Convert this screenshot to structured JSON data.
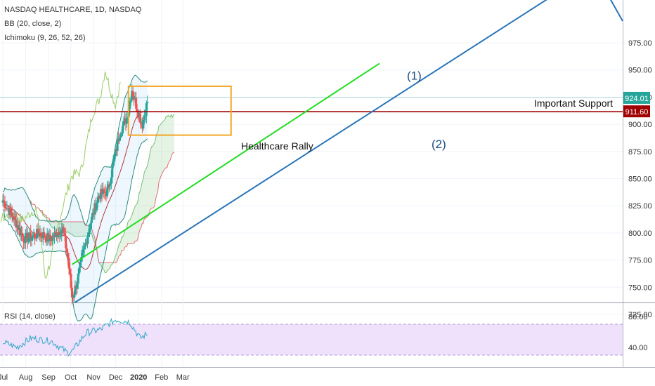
{
  "header": {
    "title": "NASDAQ HEALTHCARE, 1D, NASDAQ",
    "indicator_bb": "BB (20, close, 2)",
    "indicator_ichimoku": "Ichimoku (9, 26, 52, 26)",
    "indicator_rsi": "RSI (14, close)"
  },
  "annotations": {
    "rally": "Healthcare Rally",
    "support": "Important Support",
    "wave1": "(1)",
    "wave2": "(2)"
  },
  "price_tags": {
    "last": "924.01",
    "support": "911.60"
  },
  "colors": {
    "up": "#26a69a",
    "down": "#ef5350",
    "trend": "#2a75b8",
    "rally_line": "#22dd22",
    "support_line": "#a00000",
    "box": "#f5a623",
    "rsi_bg": "#efe0fb",
    "rsi_line": "#2fa8c6"
  },
  "chart_data": {
    "type": "candlestick",
    "title": "NASDAQ HEALTHCARE, 1D, NASDAQ",
    "y_ticks": [
      "975.00",
      "950.00",
      "925.00",
      "900.00",
      "875.00",
      "850.00",
      "825.00",
      "800.00",
      "775.00",
      "750.00",
      "725.00"
    ],
    "y_range": [
      718,
      1000
    ],
    "x_ticks": [
      "Jul",
      "Aug",
      "Sep",
      "Oct",
      "Nov",
      "Dec",
      "2020",
      "Feb",
      "Mar"
    ],
    "support_level": 911.6,
    "last_price": 924.01,
    "close_series": [
      {
        "date": "2019-07-01",
        "close": 830
      },
      {
        "date": "2019-07-10",
        "close": 820
      },
      {
        "date": "2019-07-20",
        "close": 808
      },
      {
        "date": "2019-07-29",
        "close": 795
      },
      {
        "date": "2019-08-08",
        "close": 796
      },
      {
        "date": "2019-08-20",
        "close": 800
      },
      {
        "date": "2019-09-03",
        "close": 794
      },
      {
        "date": "2019-09-12",
        "close": 800
      },
      {
        "date": "2019-09-20",
        "close": 804
      },
      {
        "date": "2019-09-27",
        "close": 778
      },
      {
        "date": "2019-10-03",
        "close": 740
      },
      {
        "date": "2019-10-10",
        "close": 756
      },
      {
        "date": "2019-10-18",
        "close": 782
      },
      {
        "date": "2019-10-28",
        "close": 810
      },
      {
        "date": "2019-11-08",
        "close": 835
      },
      {
        "date": "2019-11-20",
        "close": 838
      },
      {
        "date": "2019-11-29",
        "close": 868
      },
      {
        "date": "2019-12-06",
        "close": 892
      },
      {
        "date": "2019-12-16",
        "close": 906
      },
      {
        "date": "2019-12-23",
        "close": 932
      },
      {
        "date": "2019-12-31",
        "close": 912
      },
      {
        "date": "2020-01-06",
        "close": 900
      },
      {
        "date": "2020-01-14",
        "close": 924
      }
    ],
    "bollinger": {
      "period": 20,
      "source": "close",
      "stdev": 2
    },
    "ichimoku": {
      "conversion": 9,
      "base": 26,
      "span_b": 52,
      "displacement": 26
    },
    "rsi": {
      "period": 14,
      "source": "close",
      "y_ticks": [
        "80.00",
        "40.00"
      ],
      "values": [
        {
          "date": "2019-07-01",
          "rsi": 47
        },
        {
          "date": "2019-07-20",
          "rsi": 40
        },
        {
          "date": "2019-08-08",
          "rsi": 52
        },
        {
          "date": "2019-09-05",
          "rsi": 48
        },
        {
          "date": "2019-09-27",
          "rsi": 33
        },
        {
          "date": "2019-10-04",
          "rsi": 36
        },
        {
          "date": "2019-10-22",
          "rsi": 59
        },
        {
          "date": "2019-11-10",
          "rsi": 63
        },
        {
          "date": "2019-12-01",
          "rsi": 76
        },
        {
          "date": "2019-12-20",
          "rsi": 73
        },
        {
          "date": "2020-01-03",
          "rsi": 52
        },
        {
          "date": "2020-01-14",
          "rsi": 58
        }
      ]
    }
  }
}
